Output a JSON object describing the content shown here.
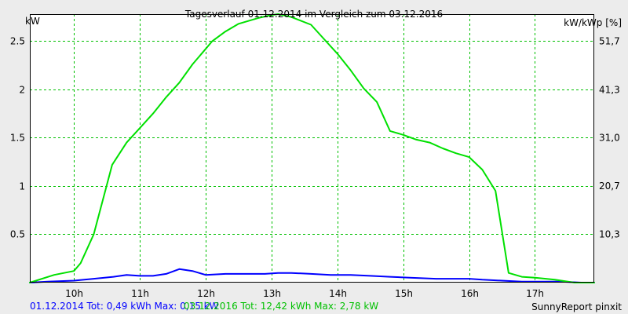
{
  "chart_data": {
    "type": "line",
    "title": "Tagesverlauf 01.12.2014 im Vergleich zum 03.12.2016",
    "ylabel_left": "kW",
    "ylabel_right": "kW/kWp [%]",
    "x_tick_labels": [
      "10h",
      "11h",
      "12h",
      "13h",
      "14h",
      "15h",
      "16h",
      "17h"
    ],
    "x_tick_values": [
      10,
      11,
      12,
      13,
      14,
      15,
      16,
      17
    ],
    "xlim": [
      9.33,
      17.9
    ],
    "y_tick_labels": [
      "0.5",
      "1",
      "1.5",
      "2",
      "2.5"
    ],
    "y_tick_values": [
      0.5,
      1,
      1.5,
      2,
      2.5
    ],
    "ylim": [
      0,
      2.78
    ],
    "y2_tick_labels": [
      "10,3",
      "20,7",
      "31,0",
      "41,3",
      "51,7"
    ],
    "y2_tick_values": [
      10.3,
      20.7,
      31.0,
      41.3,
      51.7
    ],
    "grid": true,
    "series": [
      {
        "name": "01.12.2014",
        "color": "#0000ff",
        "x": [
          9.33,
          9.6,
          10.0,
          10.3,
          10.6,
          10.8,
          11.0,
          11.2,
          11.4,
          11.6,
          11.8,
          12.0,
          12.3,
          12.6,
          12.9,
          13.1,
          13.3,
          13.6,
          13.9,
          14.2,
          14.5,
          14.8,
          15.1,
          15.5,
          15.8,
          16.0,
          16.2,
          16.5,
          16.8,
          17.1,
          17.4,
          17.7,
          17.9
        ],
        "y": [
          0,
          0.01,
          0.02,
          0.04,
          0.06,
          0.08,
          0.07,
          0.07,
          0.09,
          0.14,
          0.12,
          0.08,
          0.09,
          0.09,
          0.09,
          0.1,
          0.1,
          0.09,
          0.08,
          0.08,
          0.07,
          0.06,
          0.05,
          0.04,
          0.04,
          0.04,
          0.03,
          0.02,
          0.01,
          0.01,
          0.01,
          0.0,
          0.0
        ]
      },
      {
        "name": "03.12.2016",
        "color": "#00e000",
        "x": [
          9.33,
          9.7,
          10.0,
          10.1,
          10.3,
          10.58,
          10.8,
          11.0,
          11.2,
          11.4,
          11.6,
          11.8,
          12.0,
          12.1,
          12.3,
          12.5,
          12.8,
          13.0,
          13.1,
          13.3,
          13.6,
          13.8,
          14.0,
          14.2,
          14.4,
          14.6,
          14.8,
          15.0,
          15.2,
          15.4,
          15.6,
          15.8,
          16.0,
          16.2,
          16.4,
          16.6,
          16.8,
          17.0,
          17.3,
          17.6,
          17.9
        ],
        "y": [
          0,
          0.08,
          0.12,
          0.2,
          0.5,
          1.22,
          1.45,
          1.6,
          1.75,
          1.92,
          2.07,
          2.26,
          2.42,
          2.5,
          2.6,
          2.68,
          2.74,
          2.77,
          2.78,
          2.75,
          2.67,
          2.52,
          2.37,
          2.2,
          2.01,
          1.87,
          1.57,
          1.53,
          1.48,
          1.45,
          1.39,
          1.34,
          1.3,
          1.17,
          0.95,
          0.1,
          0.06,
          0.05,
          0.03,
          0.0,
          0.0
        ]
      }
    ]
  },
  "footer": {
    "series1_summary": "01.12.2014 Tot: 0,49 kWh Max: 0,15 kW",
    "series2_summary": "03.12.2016 Tot: 12,42 kWh Max: 2,78 kW",
    "credit": "SunnyReport pinxit"
  },
  "colors": {
    "background": "#ececec",
    "plot_background": "#ffffff",
    "grid": "#00c000",
    "frame": "#000000"
  }
}
